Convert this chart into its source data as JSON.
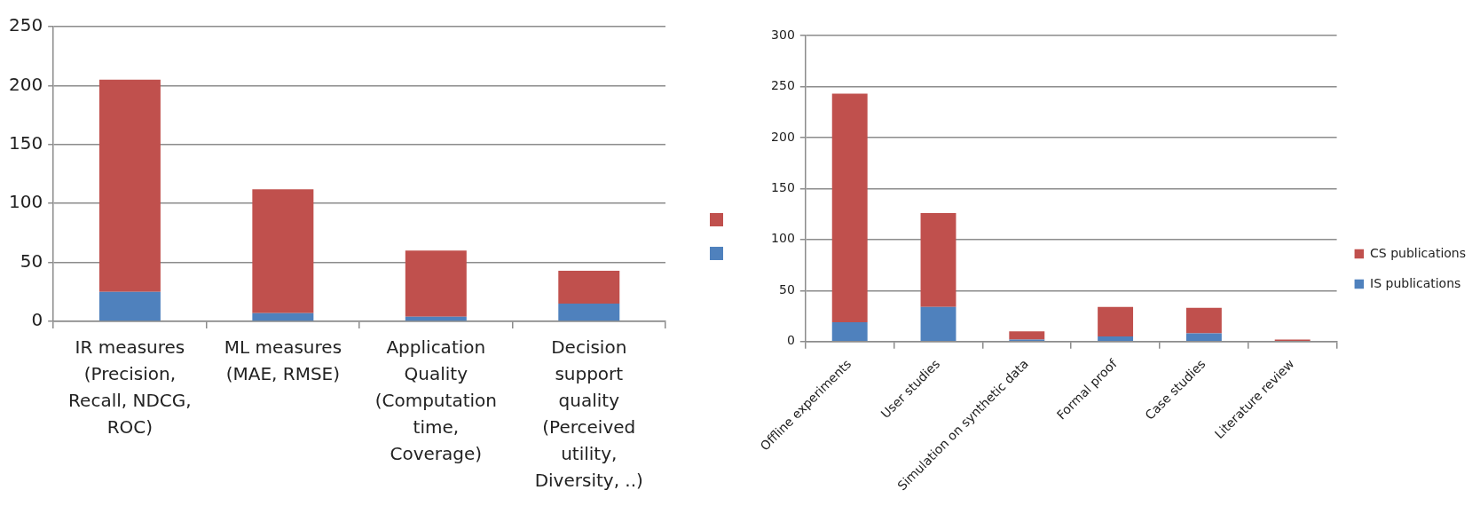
{
  "chart_data": [
    {
      "type": "bar",
      "categories": [
        "IR measures (Precision, Recall, NDCG, ROC)",
        "ML measures (MAE, RMSE)",
        "Application Quality (Computation time, Coverage)",
        "Decision support quality (Perceived utility, Diversity, ..)"
      ],
      "series": [
        {
          "color": "#4f81bd",
          "values": [
            25,
            7,
            4,
            15
          ]
        },
        {
          "color": "#c0504d",
          "values": [
            180,
            105,
            56,
            28
          ]
        }
      ],
      "stacked": true,
      "ylim": [
        0,
        250
      ],
      "yticks": [
        0,
        50,
        100,
        150,
        200,
        250
      ],
      "grid": "y",
      "legend": "right"
    },
    {
      "type": "bar",
      "categories": [
        "Offline experiments",
        "User studies",
        "Simulation on synthetic data",
        "Formal proof",
        "Case studies",
        "Literature review"
      ],
      "series": [
        {
          "name": "IS publications",
          "color": "#4f81bd",
          "values": [
            19,
            34,
            2,
            5,
            8,
            null
          ]
        },
        {
          "name": "CS publications",
          "color": "#c0504d",
          "values": [
            224,
            92,
            8,
            29,
            25,
            2
          ]
        }
      ],
      "stacked": true,
      "ylim": [
        0,
        300
      ],
      "yticks": [
        0,
        50,
        100,
        150,
        200,
        250,
        300
      ],
      "grid": "y",
      "legend": "right"
    }
  ]
}
